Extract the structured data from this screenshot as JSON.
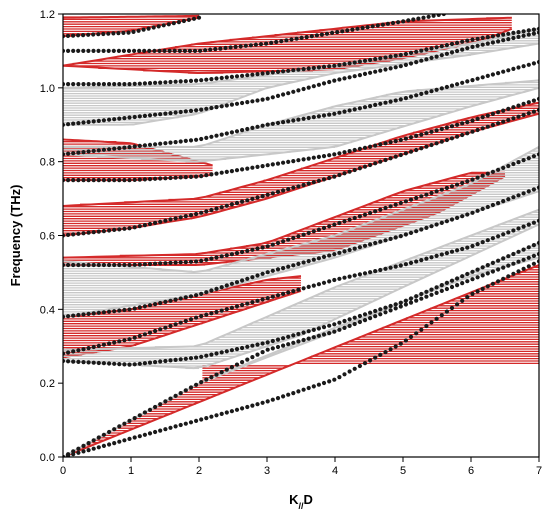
{
  "chart_data": {
    "type": "line",
    "title": "",
    "xlabel": "K//D",
    "xlabel_main": "K",
    "xlabel_sub": "//",
    "xlabel_tail": "D",
    "ylabel": "Frequency (THz)",
    "xlim": [
      0,
      7
    ],
    "ylim": [
      0,
      1.2
    ],
    "xticks": [
      0,
      1,
      2,
      3,
      4,
      5,
      6,
      7
    ],
    "yticks": [
      0.0,
      0.2,
      0.4,
      0.6,
      0.8,
      1.0,
      1.2
    ],
    "xtick_labels": [
      "0",
      "1",
      "2",
      "3",
      "4",
      "5",
      "6",
      "7"
    ],
    "ytick_labels": [
      "0.0",
      "0.2",
      "0.4",
      "0.6",
      "0.8",
      "1.0",
      "1.2"
    ],
    "grid": false,
    "legend": "none",
    "colors": {
      "red_band": "#d42a2a",
      "gray_band": "#c8c8c8",
      "dots": "#1a1a1a",
      "axis": "#000000"
    },
    "series": [
      {
        "style": "red_band",
        "lower": [
          [
            0,
            0
          ],
          [
            7,
            0.52
          ]
        ],
        "upper": [
          [
            0,
            0
          ],
          [
            1,
            0.1
          ],
          [
            2,
            0.2
          ],
          [
            2,
            0.26
          ],
          [
            1.5,
            0.255
          ],
          [
            1,
            0.25
          ],
          [
            0,
            0.25
          ]
        ]
      },
      {
        "style": "red_band",
        "lower": [
          [
            0,
            0.27
          ],
          [
            1,
            0.3
          ],
          [
            2,
            0.36
          ],
          [
            3,
            0.42
          ],
          [
            3.5,
            0.45
          ]
        ],
        "upper": [
          [
            0,
            0.38
          ],
          [
            1,
            0.4
          ],
          [
            2,
            0.44
          ],
          [
            3,
            0.48
          ],
          [
            3.5,
            0.49
          ]
        ]
      },
      {
        "style": "red_band",
        "lower": [
          [
            0,
            0.52
          ],
          [
            2,
            0.52
          ],
          [
            4,
            0.56
          ],
          [
            5.5,
            0.66
          ],
          [
            6.5,
            0.76
          ]
        ],
        "upper": [
          [
            0,
            0.54
          ],
          [
            2,
            0.55
          ],
          [
            3,
            0.58
          ],
          [
            4,
            0.65
          ],
          [
            5,
            0.72
          ],
          [
            6,
            0.77
          ],
          [
            6.5,
            0.77
          ]
        ]
      },
      {
        "style": "red_band",
        "lower": [
          [
            0,
            0.6
          ],
          [
            1,
            0.62
          ],
          [
            2,
            0.65
          ],
          [
            3,
            0.7
          ],
          [
            4,
            0.76
          ],
          [
            5,
            0.82
          ],
          [
            6,
            0.88
          ],
          [
            7,
            0.93
          ]
        ],
        "upper": [
          [
            0,
            0.68
          ],
          [
            2,
            0.7
          ],
          [
            3,
            0.75
          ],
          [
            4,
            0.81
          ],
          [
            5,
            0.87
          ],
          [
            6,
            0.92
          ],
          [
            7,
            0.96
          ]
        ]
      },
      {
        "style": "red_band",
        "lower": [
          [
            0,
            0.75
          ],
          [
            1,
            0.75
          ],
          [
            2,
            0.76
          ],
          [
            2.2,
            0.765
          ]
        ],
        "upper": [
          [
            0,
            0.86
          ],
          [
            1,
            0.85
          ],
          [
            2,
            0.8
          ],
          [
            2.2,
            0.79
          ]
        ]
      },
      {
        "style": "red_band",
        "lower": [
          [
            0,
            1.06
          ],
          [
            2,
            1.04
          ],
          [
            4,
            1.05
          ],
          [
            5,
            1.08
          ],
          [
            6.2,
            1.13
          ],
          [
            6.6,
            1.16
          ]
        ],
        "upper": [
          [
            0,
            1.06
          ],
          [
            2,
            1.12
          ],
          [
            4,
            1.16
          ],
          [
            5,
            1.18
          ],
          [
            6.6,
            1.19
          ]
        ]
      },
      {
        "style": "red_band",
        "lower": [
          [
            0,
            1.14
          ],
          [
            1,
            1.155
          ],
          [
            2,
            1.19
          ]
        ],
        "upper": [
          [
            0,
            1.19
          ],
          [
            2,
            1.195
          ]
        ]
      },
      {
        "style": "gray_band",
        "lower": [
          [
            0,
            0
          ],
          [
            2,
            0.2
          ],
          [
            4,
            0.34
          ],
          [
            7,
            0.58
          ]
        ],
        "upper": [
          [
            0,
            0
          ],
          [
            1,
            0.1
          ],
          [
            2,
            0.2
          ],
          [
            4,
            0.35
          ],
          [
            6,
            0.49
          ],
          [
            7,
            0.54
          ]
        ]
      },
      {
        "style": "gray_band",
        "lower": [
          [
            0,
            0.26
          ],
          [
            2,
            0.24
          ],
          [
            3.5,
            0.33
          ],
          [
            5,
            0.46
          ],
          [
            7,
            0.63
          ]
        ],
        "upper": [
          [
            0,
            0.29
          ],
          [
            2,
            0.3
          ],
          [
            4,
            0.46
          ],
          [
            6,
            0.6
          ],
          [
            7,
            0.67
          ]
        ]
      },
      {
        "style": "gray_band",
        "lower": [
          [
            0,
            0.38
          ],
          [
            2,
            0.44
          ],
          [
            4,
            0.54
          ],
          [
            5,
            0.6
          ],
          [
            7,
            0.72
          ]
        ],
        "upper": [
          [
            0,
            0.53
          ],
          [
            2,
            0.5
          ],
          [
            4,
            0.6
          ],
          [
            6,
            0.74
          ],
          [
            7,
            0.84
          ]
        ]
      },
      {
        "style": "gray_band",
        "lower": [
          [
            0,
            0.82
          ],
          [
            2,
            0.8
          ],
          [
            4,
            0.84
          ],
          [
            6,
            0.95
          ],
          [
            7,
            1.0
          ]
        ],
        "upper": [
          [
            0,
            0.84
          ],
          [
            2,
            0.84
          ],
          [
            3,
            0.9
          ],
          [
            4,
            0.95
          ],
          [
            5,
            0.99
          ],
          [
            7,
            1.02
          ]
        ]
      },
      {
        "style": "gray_band",
        "lower": [
          [
            0,
            0.9
          ],
          [
            1,
            0.9
          ],
          [
            2,
            0.93
          ],
          [
            3,
            1.0
          ],
          [
            4,
            1.04
          ],
          [
            6,
            1.09
          ],
          [
            7,
            1.12
          ]
        ],
        "upper": [
          [
            0,
            1.0
          ],
          [
            2,
            1.01
          ],
          [
            4,
            1.06
          ],
          [
            6,
            1.12
          ],
          [
            7,
            1.16
          ]
        ]
      },
      {
        "style": "dots",
        "points": [
          [
            0,
            0
          ],
          [
            1,
            0.1
          ],
          [
            2,
            0.2
          ],
          [
            3,
            0.29
          ],
          [
            4,
            0.34
          ],
          [
            5,
            0.41
          ],
          [
            6,
            0.48
          ],
          [
            7,
            0.55
          ]
        ]
      },
      {
        "style": "dots",
        "points": [
          [
            0,
            0
          ],
          [
            1,
            0.05
          ],
          [
            2,
            0.1
          ],
          [
            3,
            0.15
          ],
          [
            4,
            0.21
          ],
          [
            5,
            0.31
          ],
          [
            6,
            0.44
          ],
          [
            7,
            0.53
          ]
        ]
      },
      {
        "style": "dots",
        "points": [
          [
            0,
            0.26
          ],
          [
            1,
            0.25
          ],
          [
            2,
            0.27
          ],
          [
            3,
            0.31
          ],
          [
            4,
            0.36
          ],
          [
            5,
            0.42
          ],
          [
            6,
            0.5
          ],
          [
            7,
            0.58
          ]
        ]
      },
      {
        "style": "dots",
        "points": [
          [
            0,
            0.28
          ],
          [
            1,
            0.32
          ],
          [
            2,
            0.38
          ],
          [
            3,
            0.43
          ],
          [
            4,
            0.48
          ],
          [
            5,
            0.52
          ],
          [
            6,
            0.57
          ],
          [
            7,
            0.64
          ]
        ]
      },
      {
        "style": "dots",
        "points": [
          [
            0,
            0.38
          ],
          [
            1,
            0.4
          ],
          [
            2,
            0.44
          ],
          [
            3,
            0.5
          ],
          [
            4,
            0.55
          ],
          [
            5,
            0.6
          ],
          [
            6,
            0.66
          ],
          [
            7,
            0.73
          ]
        ]
      },
      {
        "style": "dots",
        "points": [
          [
            0,
            0.52
          ],
          [
            1,
            0.52
          ],
          [
            2,
            0.53
          ],
          [
            3,
            0.57
          ],
          [
            4,
            0.63
          ],
          [
            5,
            0.69
          ],
          [
            6,
            0.75
          ],
          [
            7,
            0.82
          ]
        ]
      },
      {
        "style": "dots",
        "points": [
          [
            0,
            0.6
          ],
          [
            1,
            0.62
          ],
          [
            2,
            0.66
          ],
          [
            3,
            0.71
          ],
          [
            4,
            0.76
          ],
          [
            5,
            0.82
          ],
          [
            6,
            0.88
          ],
          [
            7,
            0.94
          ]
        ]
      },
      {
        "style": "dots",
        "points": [
          [
            0,
            0.75
          ],
          [
            1,
            0.75
          ],
          [
            2,
            0.76
          ],
          [
            3,
            0.79
          ],
          [
            4,
            0.82
          ],
          [
            5,
            0.86
          ],
          [
            6,
            0.91
          ],
          [
            7,
            0.97
          ]
        ]
      },
      {
        "style": "dots",
        "points": [
          [
            0,
            0.82
          ],
          [
            1,
            0.84
          ],
          [
            2,
            0.86
          ],
          [
            3,
            0.9
          ],
          [
            4,
            0.93
          ],
          [
            5,
            0.97
          ],
          [
            6,
            1.02
          ],
          [
            7,
            1.07
          ]
        ]
      },
      {
        "style": "dots",
        "points": [
          [
            0,
            0.9
          ],
          [
            1,
            0.92
          ],
          [
            2,
            0.94
          ],
          [
            3,
            0.97
          ],
          [
            4,
            1.02
          ],
          [
            5,
            1.06
          ],
          [
            6,
            1.11
          ],
          [
            7,
            1.15
          ]
        ]
      },
      {
        "style": "dots",
        "points": [
          [
            0,
            1.01
          ],
          [
            1,
            1.01
          ],
          [
            2,
            1.02
          ],
          [
            3,
            1.04
          ],
          [
            4,
            1.06
          ],
          [
            5,
            1.09
          ],
          [
            6,
            1.13
          ],
          [
            7,
            1.16
          ]
        ]
      },
      {
        "style": "dots",
        "points": [
          [
            0,
            1.1
          ],
          [
            1,
            1.1
          ],
          [
            2,
            1.1
          ],
          [
            3,
            1.12
          ],
          [
            4,
            1.15
          ],
          [
            5,
            1.18
          ],
          [
            5.6,
            1.2
          ]
        ]
      },
      {
        "style": "dots",
        "points": [
          [
            0,
            1.14
          ],
          [
            1,
            1.15
          ],
          [
            2,
            1.19
          ]
        ]
      }
    ]
  }
}
